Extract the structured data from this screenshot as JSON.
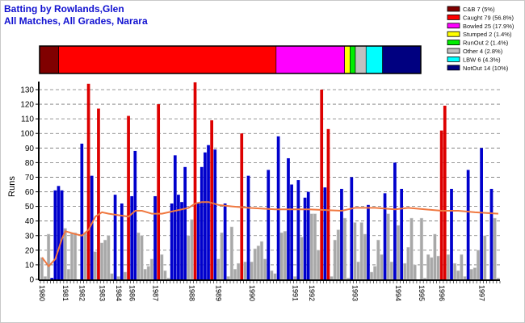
{
  "title_line1": "Batting by Rowlands,Glen",
  "title_line2": "All Matches, All Grades, Narara",
  "chart_data": {
    "type": "bar",
    "ylabel": "Runs",
    "xlabel": "",
    "ylim": [
      0,
      135
    ],
    "yticks": [
      0,
      10,
      20,
      30,
      40,
      50,
      60,
      70,
      80,
      90,
      100,
      110,
      120,
      130
    ],
    "grid": true,
    "legend_placement": "top-right",
    "colors": {
      "g": "#a8a8a8",
      "b": "#0000cc",
      "r": "#dd0000",
      "avg": "#f07840"
    },
    "innings": [
      [
        15,
        "g"
      ],
      [
        2,
        "g"
      ],
      [
        31,
        "g"
      ],
      [
        1,
        "b"
      ],
      [
        61,
        "b"
      ],
      [
        64,
        "b"
      ],
      [
        61,
        "b"
      ],
      [
        35,
        "g"
      ],
      [
        7,
        "g"
      ],
      [
        32,
        "g"
      ],
      [
        32,
        "g"
      ],
      [
        0,
        "g"
      ],
      [
        93,
        "b"
      ],
      [
        32,
        "g"
      ],
      [
        134,
        "r"
      ],
      [
        71,
        "b"
      ],
      [
        19,
        "g"
      ],
      [
        117,
        "r"
      ],
      [
        25,
        "g"
      ],
      [
        27,
        "g"
      ],
      [
        30,
        "g"
      ],
      [
        4,
        "g"
      ],
      [
        58,
        "b"
      ],
      [
        2,
        "g"
      ],
      [
        52,
        "b"
      ],
      [
        5,
        "g"
      ],
      [
        112,
        "r"
      ],
      [
        57,
        "b"
      ],
      [
        88,
        "b"
      ],
      [
        32,
        "g"
      ],
      [
        30,
        "g"
      ],
      [
        7,
        "g"
      ],
      [
        9,
        "g"
      ],
      [
        14,
        "g"
      ],
      [
        57,
        "b"
      ],
      [
        120,
        "r"
      ],
      [
        17,
        "g"
      ],
      [
        6,
        "g"
      ],
      [
        1,
        "g"
      ],
      [
        52,
        "b"
      ],
      [
        85,
        "b"
      ],
      [
        58,
        "b"
      ],
      [
        53,
        "b"
      ],
      [
        77,
        "b"
      ],
      [
        30,
        "g"
      ],
      [
        41,
        "g"
      ],
      [
        135,
        "r"
      ],
      [
        52,
        "b"
      ],
      [
        77,
        "b"
      ],
      [
        87,
        "b"
      ],
      [
        92,
        "b"
      ],
      [
        109,
        "r"
      ],
      [
        89,
        "b"
      ],
      [
        14,
        "g"
      ],
      [
        32,
        "g"
      ],
      [
        52,
        "b"
      ],
      [
        2,
        "g"
      ],
      [
        36,
        "g"
      ],
      [
        7,
        "g"
      ],
      [
        11,
        "g"
      ],
      [
        100,
        "r"
      ],
      [
        12,
        "g"
      ],
      [
        71,
        "b"
      ],
      [
        12,
        "g"
      ],
      [
        21,
        "g"
      ],
      [
        23,
        "g"
      ],
      [
        26,
        "g"
      ],
      [
        14,
        "g"
      ],
      [
        75,
        "b"
      ],
      [
        6,
        "g"
      ],
      [
        4,
        "g"
      ],
      [
        98,
        "b"
      ],
      [
        32,
        "g"
      ],
      [
        33,
        "g"
      ],
      [
        83,
        "b"
      ],
      [
        65,
        "b"
      ],
      [
        2,
        "g"
      ],
      [
        68,
        "b"
      ],
      [
        29,
        "g"
      ],
      [
        56,
        "b"
      ],
      [
        60,
        "b"
      ],
      [
        45,
        "g"
      ],
      [
        45,
        "g"
      ],
      [
        20,
        "g"
      ],
      [
        130,
        "r"
      ],
      [
        63,
        "b"
      ],
      [
        103,
        "r"
      ],
      [
        2,
        "g"
      ],
      [
        27,
        "g"
      ],
      [
        34,
        "g"
      ],
      [
        62,
        "b"
      ],
      [
        42,
        "g"
      ],
      [
        1,
        "g"
      ],
      [
        70,
        "b"
      ],
      [
        39,
        "g"
      ],
      [
        12,
        "g"
      ],
      [
        39,
        "g"
      ],
      [
        31,
        "g"
      ],
      [
        51,
        "b"
      ],
      [
        5,
        "g"
      ],
      [
        9,
        "g"
      ],
      [
        27,
        "g"
      ],
      [
        17,
        "g"
      ],
      [
        59,
        "b"
      ],
      [
        45,
        "g"
      ],
      [
        12,
        "g"
      ],
      [
        80,
        "b"
      ],
      [
        37,
        "g"
      ],
      [
        62,
        "b"
      ],
      [
        11,
        "g"
      ],
      [
        22,
        "g"
      ],
      [
        42,
        "g"
      ],
      [
        10,
        "g"
      ],
      [
        0,
        "g"
      ],
      [
        42,
        "g"
      ],
      [
        1,
        "g"
      ],
      [
        17,
        "g"
      ],
      [
        15,
        "g"
      ],
      [
        31,
        "g"
      ],
      [
        16,
        "g"
      ],
      [
        102,
        "r"
      ],
      [
        119,
        "r"
      ],
      [
        17,
        "g"
      ],
      [
        62,
        "b"
      ],
      [
        11,
        "g"
      ],
      [
        6,
        "g"
      ],
      [
        17,
        "g"
      ],
      [
        2,
        "g"
      ],
      [
        75,
        "b"
      ],
      [
        7,
        "g"
      ],
      [
        8,
        "g"
      ],
      [
        20,
        "g"
      ],
      [
        90,
        "b"
      ],
      [
        30,
        "g"
      ],
      [
        0,
        "g"
      ],
      [
        62,
        "b"
      ],
      [
        42,
        "g"
      ],
      [
        1,
        "g"
      ]
    ],
    "average": [
      [
        0,
        15
      ],
      [
        2,
        9
      ],
      [
        4,
        14
      ],
      [
        6,
        28
      ],
      [
        7,
        33
      ],
      [
        10,
        31
      ],
      [
        12,
        30
      ],
      [
        14,
        34
      ],
      [
        16,
        43
      ],
      [
        18,
        46
      ],
      [
        20,
        45
      ],
      [
        23,
        44
      ],
      [
        26,
        43
      ],
      [
        28,
        47
      ],
      [
        30,
        47
      ],
      [
        33,
        45
      ],
      [
        36,
        45
      ],
      [
        40,
        47
      ],
      [
        44,
        49
      ],
      [
        46,
        52
      ],
      [
        48,
        53
      ],
      [
        50,
        53
      ],
      [
        53,
        51
      ],
      [
        57,
        50
      ],
      [
        62,
        49
      ],
      [
        70,
        48
      ],
      [
        80,
        48
      ],
      [
        90,
        47
      ],
      [
        94,
        49
      ],
      [
        100,
        49
      ],
      [
        106,
        48
      ],
      [
        110,
        49
      ],
      [
        115,
        48
      ],
      [
        120,
        47
      ],
      [
        125,
        47
      ],
      [
        130,
        46
      ],
      [
        137,
        45
      ]
    ],
    "year_labels": [
      {
        "label": "1980",
        "innings": 0
      },
      {
        "label": "1981",
        "innings": 7
      },
      {
        "label": "1982",
        "innings": 12
      },
      {
        "label": "1983",
        "innings": 18
      },
      {
        "label": "1984",
        "innings": 23
      },
      {
        "label": "1986",
        "innings": 27
      },
      {
        "label": "1987",
        "innings": 34
      },
      {
        "label": "1988",
        "innings": 45
      },
      {
        "label": "1989",
        "innings": 53
      },
      {
        "label": "1990",
        "innings": 63
      },
      {
        "label": "1991",
        "innings": 76
      },
      {
        "label": "1992",
        "innings": 81
      },
      {
        "label": "1993",
        "innings": 94
      },
      {
        "label": "1994",
        "innings": 107
      },
      {
        "label": "1995",
        "innings": 114
      },
      {
        "label": "1996",
        "innings": 120
      },
      {
        "label": "1997",
        "innings": 132
      }
    ],
    "dismissals": [
      {
        "label": "C&B 7 (5%)",
        "percent": 5,
        "color": "#800000"
      },
      {
        "label": "Caught 79 (56.8%)",
        "percent": 56.8,
        "color": "#ff0000"
      },
      {
        "label": "Bowled 25 (17.9%)",
        "percent": 17.9,
        "color": "#ff00ff"
      },
      {
        "label": "Stumped 2 (1.4%)",
        "percent": 1.4,
        "color": "#ffff00"
      },
      {
        "label": "RunOut 2 (1.4%)",
        "percent": 1.4,
        "color": "#00ee00"
      },
      {
        "label": "Other 4 (2.8%)",
        "percent": 2.8,
        "color": "#c0c0c0"
      },
      {
        "label": "LBW 6 (4.3%)",
        "percent": 4.3,
        "color": "#00ffff"
      },
      {
        "label": "NotOut 14 (10%)",
        "percent": 10,
        "color": "#000080"
      }
    ]
  }
}
